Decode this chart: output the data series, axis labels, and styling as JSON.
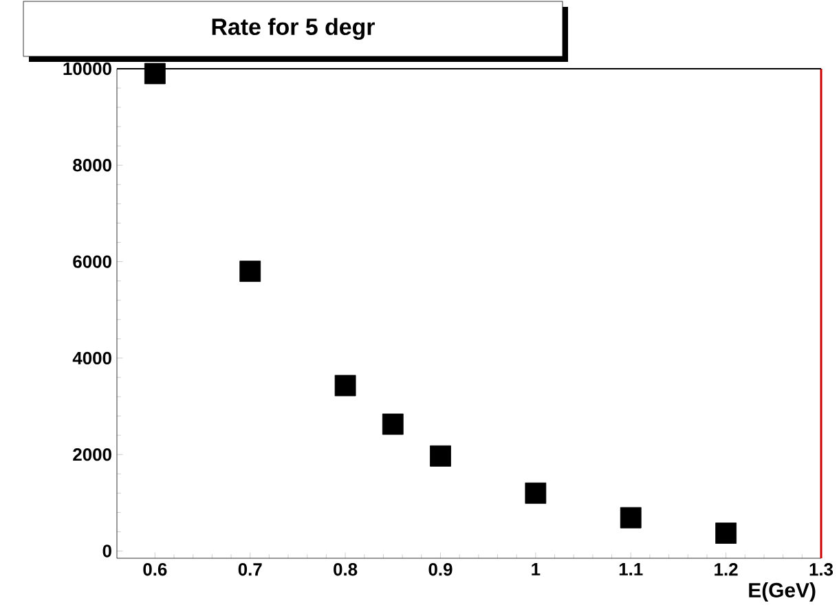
{
  "chart_data": {
    "type": "scatter",
    "title": "Rate for 5 degr",
    "xlabel": "E(GeV)",
    "x": [
      0.6,
      0.7,
      0.8,
      0.85,
      0.9,
      1.0,
      1.1,
      1.2
    ],
    "values": [
      9900,
      5800,
      3430,
      2630,
      1970,
      1200,
      690,
      370
    ],
    "color": "#000000",
    "marker": "square",
    "grid": false,
    "xlim": [
      0.56,
      1.3
    ],
    "ylim": [
      -150,
      10000
    ],
    "xticks": [
      0.6,
      0.7,
      0.8,
      0.9,
      1,
      1.1,
      1.2,
      1.3
    ],
    "yticks": [
      0,
      2000,
      4000,
      6000,
      8000,
      10000
    ]
  }
}
